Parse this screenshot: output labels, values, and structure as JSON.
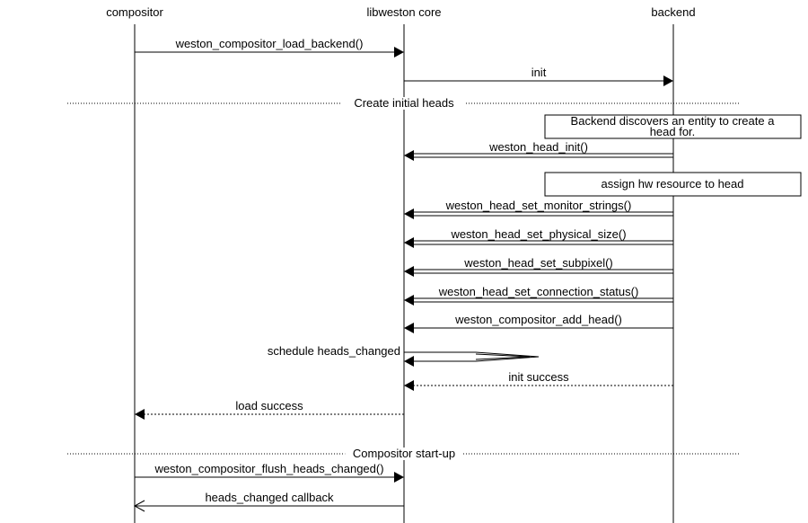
{
  "entities": [
    "compositor",
    "libweston core",
    "backend"
  ],
  "messages": [
    {
      "from": 0,
      "to": 1,
      "label": "weston_compositor_load_backend()",
      "style": "solid"
    },
    {
      "from": 1,
      "to": 2,
      "label": "init",
      "style": "solid"
    },
    {
      "type": "separator",
      "label": "Create initial heads"
    },
    {
      "type": "box",
      "over": [
        1.52,
        2.47
      ],
      "label_lines": [
        "Backend discovers an entity to create a",
        "head for."
      ]
    },
    {
      "from": 2,
      "to": 1,
      "label": "weston_head_init()",
      "style": "double"
    },
    {
      "type": "box",
      "over": [
        1.52,
        2.47
      ],
      "label_lines": [
        "assign hw resource to head"
      ]
    },
    {
      "from": 2,
      "to": 1,
      "label": "weston_head_set_monitor_strings()",
      "style": "double"
    },
    {
      "from": 2,
      "to": 1,
      "label": "weston_head_set_physical_size()",
      "style": "double"
    },
    {
      "from": 2,
      "to": 1,
      "label": "weston_head_set_subpixel()",
      "style": "double"
    },
    {
      "from": 2,
      "to": 1,
      "label": "weston_head_set_connection_status()",
      "style": "double"
    },
    {
      "from": 2,
      "to": 1,
      "label": "weston_compositor_add_head()",
      "style": "solid"
    },
    {
      "from": 1,
      "to": 1,
      "label": "schedule heads_changed",
      "style": "self"
    },
    {
      "from": 2,
      "to": 1,
      "label": "init success",
      "style": "dotted"
    },
    {
      "from": 1,
      "to": 0,
      "label": "load success",
      "style": "dotted"
    },
    {
      "type": "separator",
      "label": "Compositor start-up"
    },
    {
      "from": 0,
      "to": 1,
      "label": "weston_compositor_flush_heads_changed()",
      "style": "solid"
    },
    {
      "from": 1,
      "to": 0,
      "label": "heads_changed callback",
      "style": "open"
    }
  ]
}
